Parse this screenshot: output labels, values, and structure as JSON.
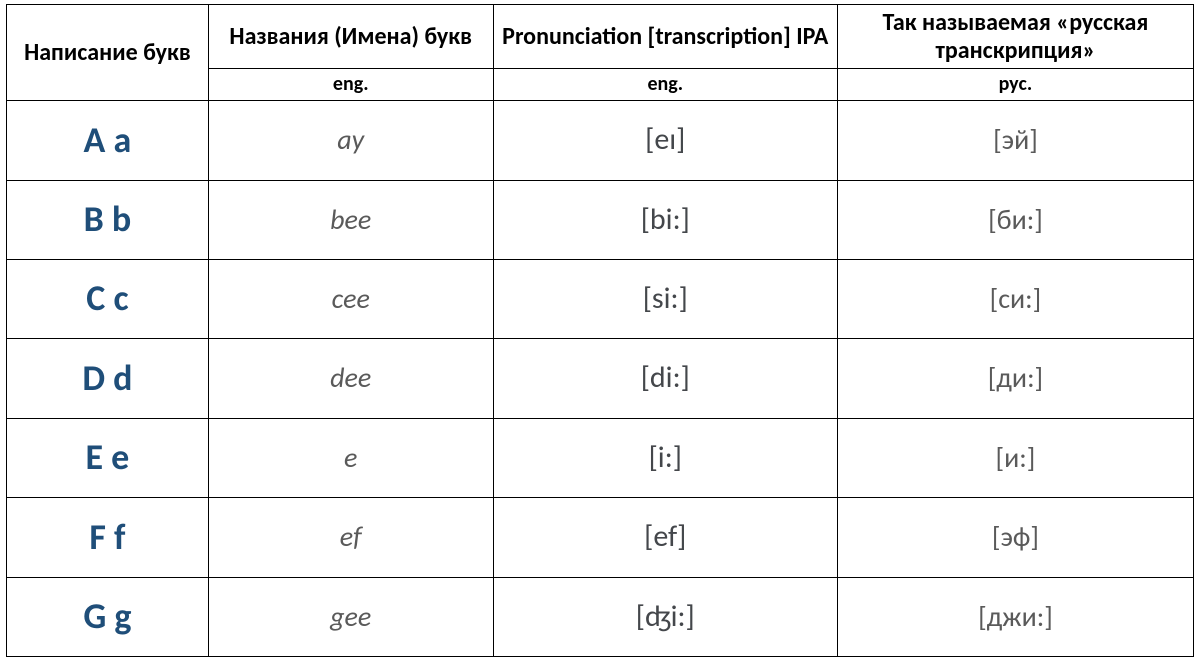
{
  "table": {
    "type": "table",
    "columns": [
      {
        "header": "Написание букв",
        "sub": null,
        "width": "17%",
        "align": "center"
      },
      {
        "header": "Названия (Имена) букв",
        "sub": "eng.",
        "width": "24%",
        "align": "center"
      },
      {
        "header": "Pronunciation [transcription] IPA",
        "sub": "eng.",
        "width": "29%",
        "align": "center"
      },
      {
        "header": "Так называемая «русская транскрипция»",
        "sub": "рус.",
        "width": "30%",
        "align": "center"
      }
    ],
    "header_fontsize": 24,
    "subheader_fontsize": 20,
    "border_color": "#000000",
    "background_color": "#ffffff",
    "letters_style": {
      "color": "#1f4e79",
      "fontsize": 36,
      "weight": 600,
      "italic": false
    },
    "name_style": {
      "color": "#5a5a5a",
      "fontsize": 28,
      "weight": 400,
      "italic": true
    },
    "ipa_style": {
      "color": "#44474b",
      "fontsize": 30,
      "weight": 400,
      "italic": false
    },
    "rus_style": {
      "color": "#5a5a5a",
      "fontsize": 28,
      "weight": 400,
      "italic": false
    },
    "rows": [
      {
        "letters": "A a",
        "name": "ay",
        "ipa": "[eɪ]",
        "rus": "[эй]"
      },
      {
        "letters": "B b",
        "name": "bee",
        "ipa": "[bi:]",
        "rus": "[би:]"
      },
      {
        "letters": "C c",
        "name": "cee",
        "ipa": "[si:]",
        "rus": "[си:]"
      },
      {
        "letters": "D d",
        "name": "dee",
        "ipa": "[di:]",
        "rus": "[ди:]"
      },
      {
        "letters": "E e",
        "name": "e",
        "ipa": "[i:]",
        "rus": "[и:]"
      },
      {
        "letters": "F f",
        "name": "ef",
        "ipa": "[ef]",
        "rus": "[эф]"
      },
      {
        "letters": "G g",
        "name": "gee",
        "ipa": "[ʤi:]",
        "rus": "[джи:]"
      }
    ]
  }
}
